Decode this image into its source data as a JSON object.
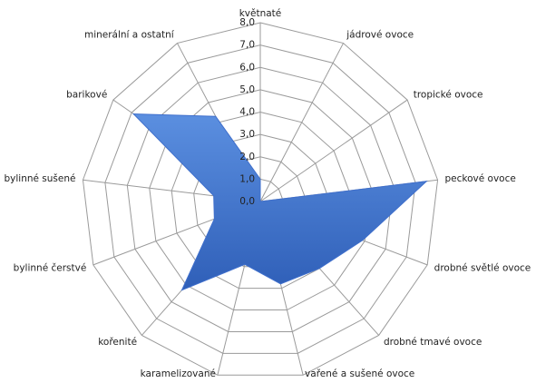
{
  "chart_data": {
    "type": "radar",
    "categories": [
      "květnaté",
      "jádrové ovoce",
      "tropické ovoce",
      "peckové ovoce",
      "drobné světlé ovoce",
      "drobné tmavé ovoce",
      "vařené a sušené ovoce",
      "karamelizované",
      "kořenité",
      "bylinné čerstvé",
      "bylinné sušené",
      "barikové",
      "minerální a ostatní"
    ],
    "values": [
      1.0,
      0,
      0,
      7.5,
      4.9,
      4.0,
      3.8,
      2.9,
      5.3,
      2.2,
      2.1,
      6.9,
      4.3
    ],
    "color": "#3f6fcc",
    "ylim": [
      0,
      8
    ],
    "yticks": [
      {
        "value": 0,
        "label": "0,0"
      },
      {
        "value": 1,
        "label": "1,0"
      },
      {
        "value": 2,
        "label": "2,0"
      },
      {
        "value": 3,
        "label": "3,0"
      },
      {
        "value": 4,
        "label": "4,0"
      },
      {
        "value": 5,
        "label": "5,0"
      },
      {
        "value": 6,
        "label": "6,0"
      },
      {
        "value": 7,
        "label": "7,0"
      },
      {
        "value": 8,
        "label": "8,0"
      }
    ],
    "grid": true
  }
}
